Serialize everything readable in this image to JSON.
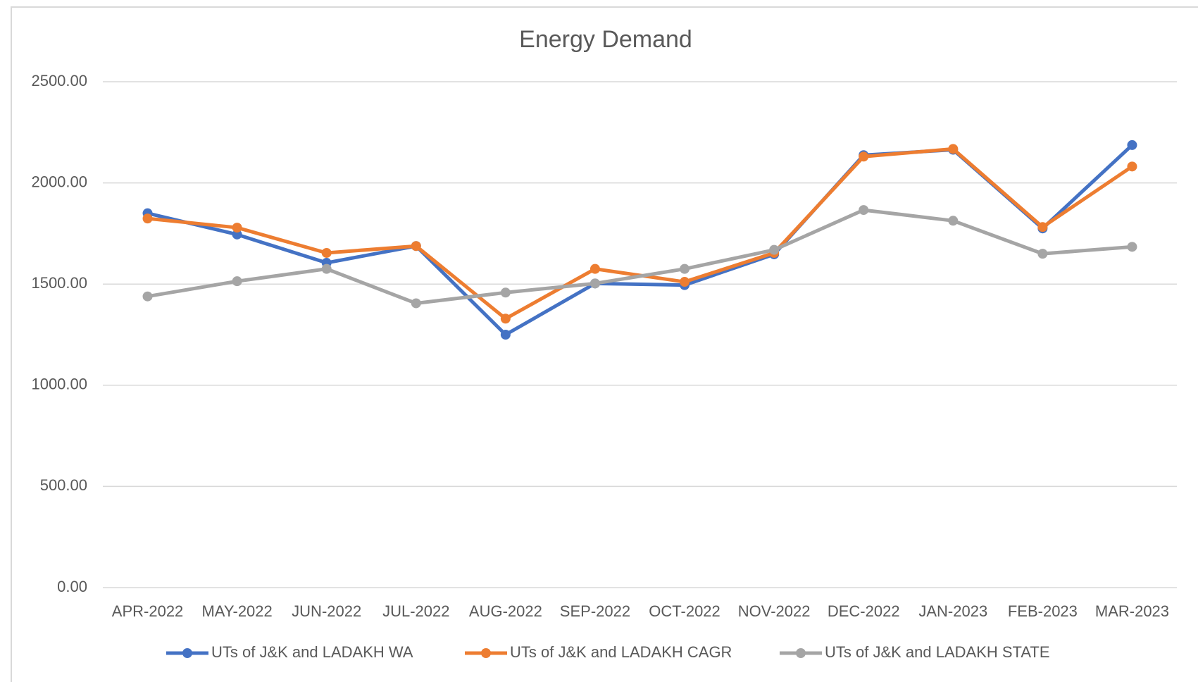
{
  "chart_data": {
    "type": "line",
    "title": "Energy Demand",
    "categories": [
      "APR-2022",
      "MAY-2022",
      "JUN-2022",
      "JUL-2022",
      "AUG-2022",
      "SEP-2022",
      "OCT-2022",
      "NOV-2022",
      "DEC-2022",
      "JAN-2023",
      "FEB-2023",
      "MAR-2023"
    ],
    "series": [
      {
        "name": "UTs of J&K and LADAKH WA",
        "color": "#4472c4",
        "values": [
          1850,
          1745,
          1605,
          1688,
          1250,
          1503,
          1495,
          1647,
          2137,
          2164,
          1775,
          2187
        ]
      },
      {
        "name": "UTs of J&K and LADAKH CAGR",
        "color": "#ed7d31",
        "values": [
          1824,
          1779,
          1654,
          1688,
          1329,
          1575,
          1511,
          1654,
          2130,
          2168,
          1782,
          2081
        ]
      },
      {
        "name": "UTs of J&K and LADAKH STATE",
        "color": "#a5a5a5",
        "values": [
          1439,
          1514,
          1575,
          1405,
          1458,
          1503,
          1575,
          1669,
          1866,
          1813,
          1650,
          1684
        ]
      }
    ],
    "ylim": [
      0,
      2500
    ],
    "yticks": [
      {
        "value": 0,
        "label": "0.00"
      },
      {
        "value": 500,
        "label": "500.00"
      },
      {
        "value": 1000,
        "label": "1000.00"
      },
      {
        "value": 1500,
        "label": "1500.00"
      },
      {
        "value": 2000,
        "label": "2000.00"
      },
      {
        "value": 2500,
        "label": "2500.00"
      }
    ],
    "grid": true,
    "legend": "bottom"
  }
}
